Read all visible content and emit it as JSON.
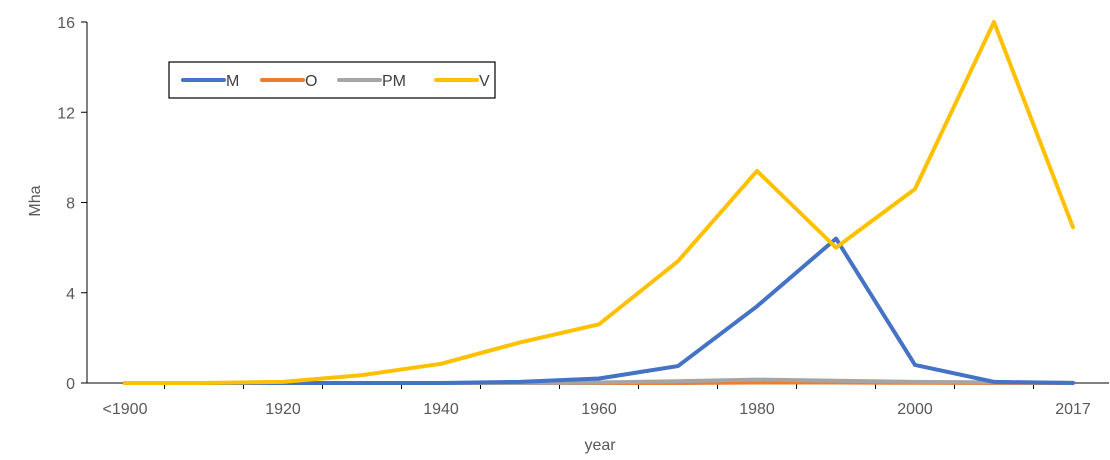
{
  "chart_data": {
    "type": "line",
    "title": "",
    "xlabel": "year",
    "ylabel": "Mha",
    "ylim": [
      0,
      16
    ],
    "yticks": [
      "0",
      "4",
      "8",
      "12",
      "16"
    ],
    "x": [
      "<1900",
      "1910",
      "1920",
      "1930",
      "1940",
      "1950",
      "1960",
      "1970",
      "1980",
      "1990",
      "2000",
      "2010",
      "2017"
    ],
    "xtick_labels": [
      "<1900",
      "1920",
      "1940",
      "1960",
      "1980",
      "2000",
      "2017"
    ],
    "legend_position": "top-left",
    "grid": false,
    "series": [
      {
        "name": "M",
        "color": "#4472C4",
        "values": [
          0,
          0,
          0,
          0,
          0,
          0.05,
          0.2,
          0.75,
          3.4,
          6.4,
          0.8,
          0.05,
          0
        ]
      },
      {
        "name": "O",
        "color": "#ED7D31",
        "values": [
          0,
          0,
          0,
          0,
          0,
          0,
          0,
          0,
          0.02,
          0.02,
          0.01,
          0,
          0
        ]
      },
      {
        "name": "PM",
        "color": "#A5A5A5",
        "values": [
          0,
          0,
          0,
          0,
          0,
          0,
          0.02,
          0.08,
          0.15,
          0.1,
          0.05,
          0.03,
          0.01
        ]
      },
      {
        "name": "V",
        "color": "#FFC000",
        "values": [
          0,
          0,
          0.05,
          0.35,
          0.85,
          1.8,
          2.6,
          5.4,
          9.4,
          6.0,
          8.6,
          16.0,
          6.9
        ]
      }
    ]
  }
}
